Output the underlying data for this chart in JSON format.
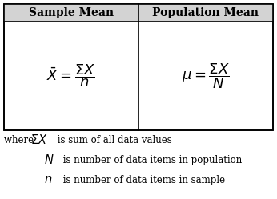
{
  "bg_color": "#ffffff",
  "table_bg": "#ffffff",
  "header_bg": "#d3d3d3",
  "border_color": "#000000",
  "text_color": "#000000",
  "header_left": "Sample Mean",
  "header_right": "Population Mean",
  "formula_left": "$\\bar{X} = \\dfrac{\\Sigma X}{n}$",
  "formula_right": "$\\mu = \\dfrac{\\Sigma X}{N}$",
  "note1_prefix": "where ",
  "note1_math": "$\\Sigma X$",
  "note1_suffix": " is sum of all data values",
  "note2_math": "$N$",
  "note2_suffix": " is number of data items in population",
  "note3_math": "$n$",
  "note3_suffix": " is number of data items in sample",
  "header_fontsize": 10,
  "formula_fontsize": 13,
  "note_fontsize": 8.5,
  "note_math_fontsize": 10.5,
  "figwidth": 3.46,
  "figheight": 2.49,
  "dpi": 100
}
